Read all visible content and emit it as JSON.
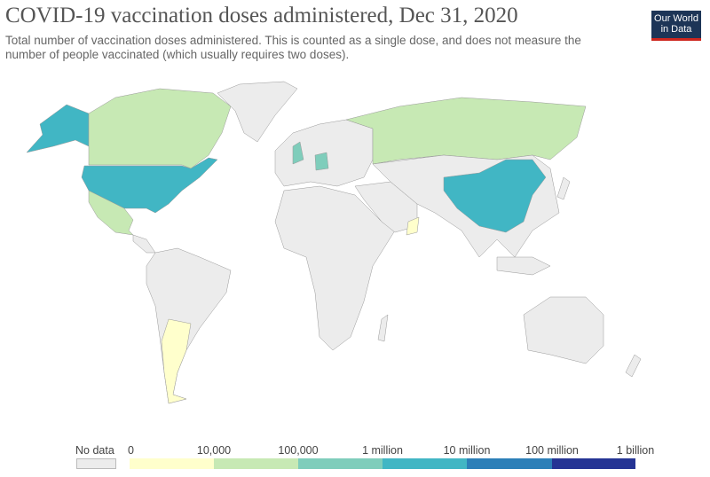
{
  "header": {
    "title": "COVID-19 vaccination doses administered, Dec 31, 2020",
    "subtitle": "Total number of vaccination doses administered. This is counted as a single dose, and does not measure the number of people vaccinated (which usually requires two doses).",
    "logo": "Our World in Data"
  },
  "legend": {
    "no_data_label": "No data",
    "no_data_color": "#ececec",
    "ticks": [
      "0",
      "10,000",
      "100,000",
      "1 million",
      "10 million",
      "100 million",
      "1 billion"
    ],
    "bands": [
      {
        "range": "0–10,000",
        "color": "#ffffcc"
      },
      {
        "range": "10,000–100,000",
        "color": "#c7e9b4"
      },
      {
        "range": "100,000–1 million",
        "color": "#7fcdbb"
      },
      {
        "range": "1 million–10 million",
        "color": "#41b6c4"
      },
      {
        "range": "10 million–100 million",
        "color": "#2c7fb8"
      },
      {
        "range": "100 million–1 billion",
        "color": "#253494"
      }
    ]
  },
  "map_regions": [
    {
      "name": "Greenland",
      "band": null
    },
    {
      "name": "Alaska (United States)",
      "band": 3
    },
    {
      "name": "Canada",
      "band": 1
    },
    {
      "name": "United States",
      "band": 3
    },
    {
      "name": "Mexico",
      "band": 1
    },
    {
      "name": "Central America",
      "band": null
    },
    {
      "name": "South America",
      "band": null
    },
    {
      "name": "Argentina",
      "band": 0
    },
    {
      "name": "Europe",
      "band": null
    },
    {
      "name": "United Kingdom",
      "band": 2
    },
    {
      "name": "Germany",
      "band": 2
    },
    {
      "name": "Russia",
      "band": 1
    },
    {
      "name": "Africa",
      "band": null
    },
    {
      "name": "Middle East",
      "band": null
    },
    {
      "name": "Oman",
      "band": 0
    },
    {
      "name": "Asia",
      "band": null
    },
    {
      "name": "China",
      "band": 3
    },
    {
      "name": "Japan",
      "band": null
    },
    {
      "name": "Southeast Asia",
      "band": null
    },
    {
      "name": "Australia",
      "band": null
    },
    {
      "name": "New Zealand",
      "band": null
    },
    {
      "name": "Madagascar",
      "band": null
    }
  ]
}
